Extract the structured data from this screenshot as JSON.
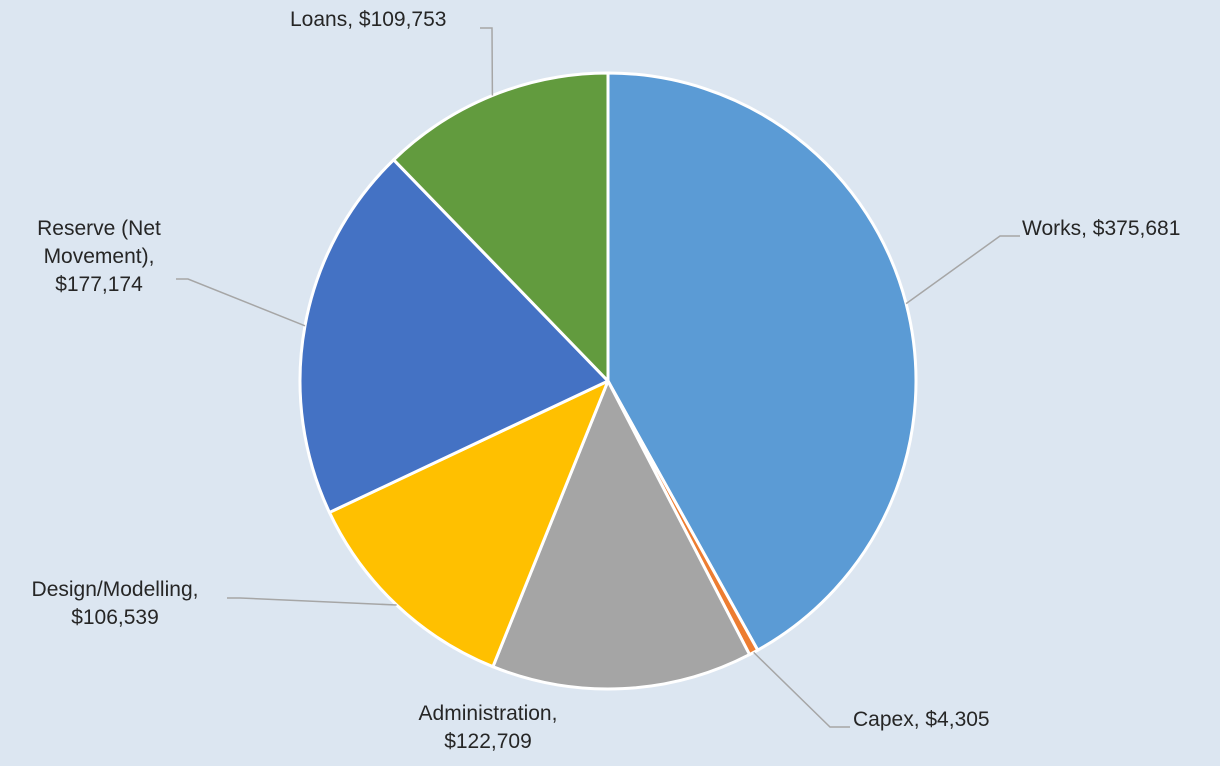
{
  "chart_data": {
    "type": "pie",
    "title": "",
    "slices": [
      {
        "name": "Works",
        "value": 375681,
        "value_text": "$375,681",
        "label_lines": [
          "Works, $375,681"
        ],
        "color": "#5b9bd5"
      },
      {
        "name": "Capex",
        "value": 4305,
        "value_text": "$4,305",
        "label_lines": [
          "Capex, $4,305"
        ],
        "color": "#ed7d31"
      },
      {
        "name": "Administration",
        "value": 122709,
        "value_text": "$122,709",
        "label_lines": [
          "Administration,",
          "$122,709"
        ],
        "color": "#a5a5a5"
      },
      {
        "name": "Design/Modelling",
        "value": 106539,
        "value_text": "$106,539",
        "label_lines": [
          "Design/Modelling,",
          "$106,539"
        ],
        "color": "#ffc000"
      },
      {
        "name": "Reserve (Net Movement)",
        "value": 177174,
        "value_text": "$177,174",
        "label_lines": [
          "Reserve (Net",
          "Movement),",
          "$177,174"
        ],
        "color": "#4472c4"
      },
      {
        "name": "Loans",
        "value": 109753,
        "value_text": "$109,753",
        "label_lines": [
          "Loans, $109,753"
        ],
        "color": "#629b3e"
      }
    ],
    "start_angle_deg": 0,
    "direction": "clockwise",
    "legend": "none",
    "data_labels": "outside-with-leader-lines"
  },
  "colors": {
    "background": "#dce6f1",
    "slice_border": "#ffffff",
    "leader_line": "#a6a6a6",
    "label_text": "#262626"
  }
}
